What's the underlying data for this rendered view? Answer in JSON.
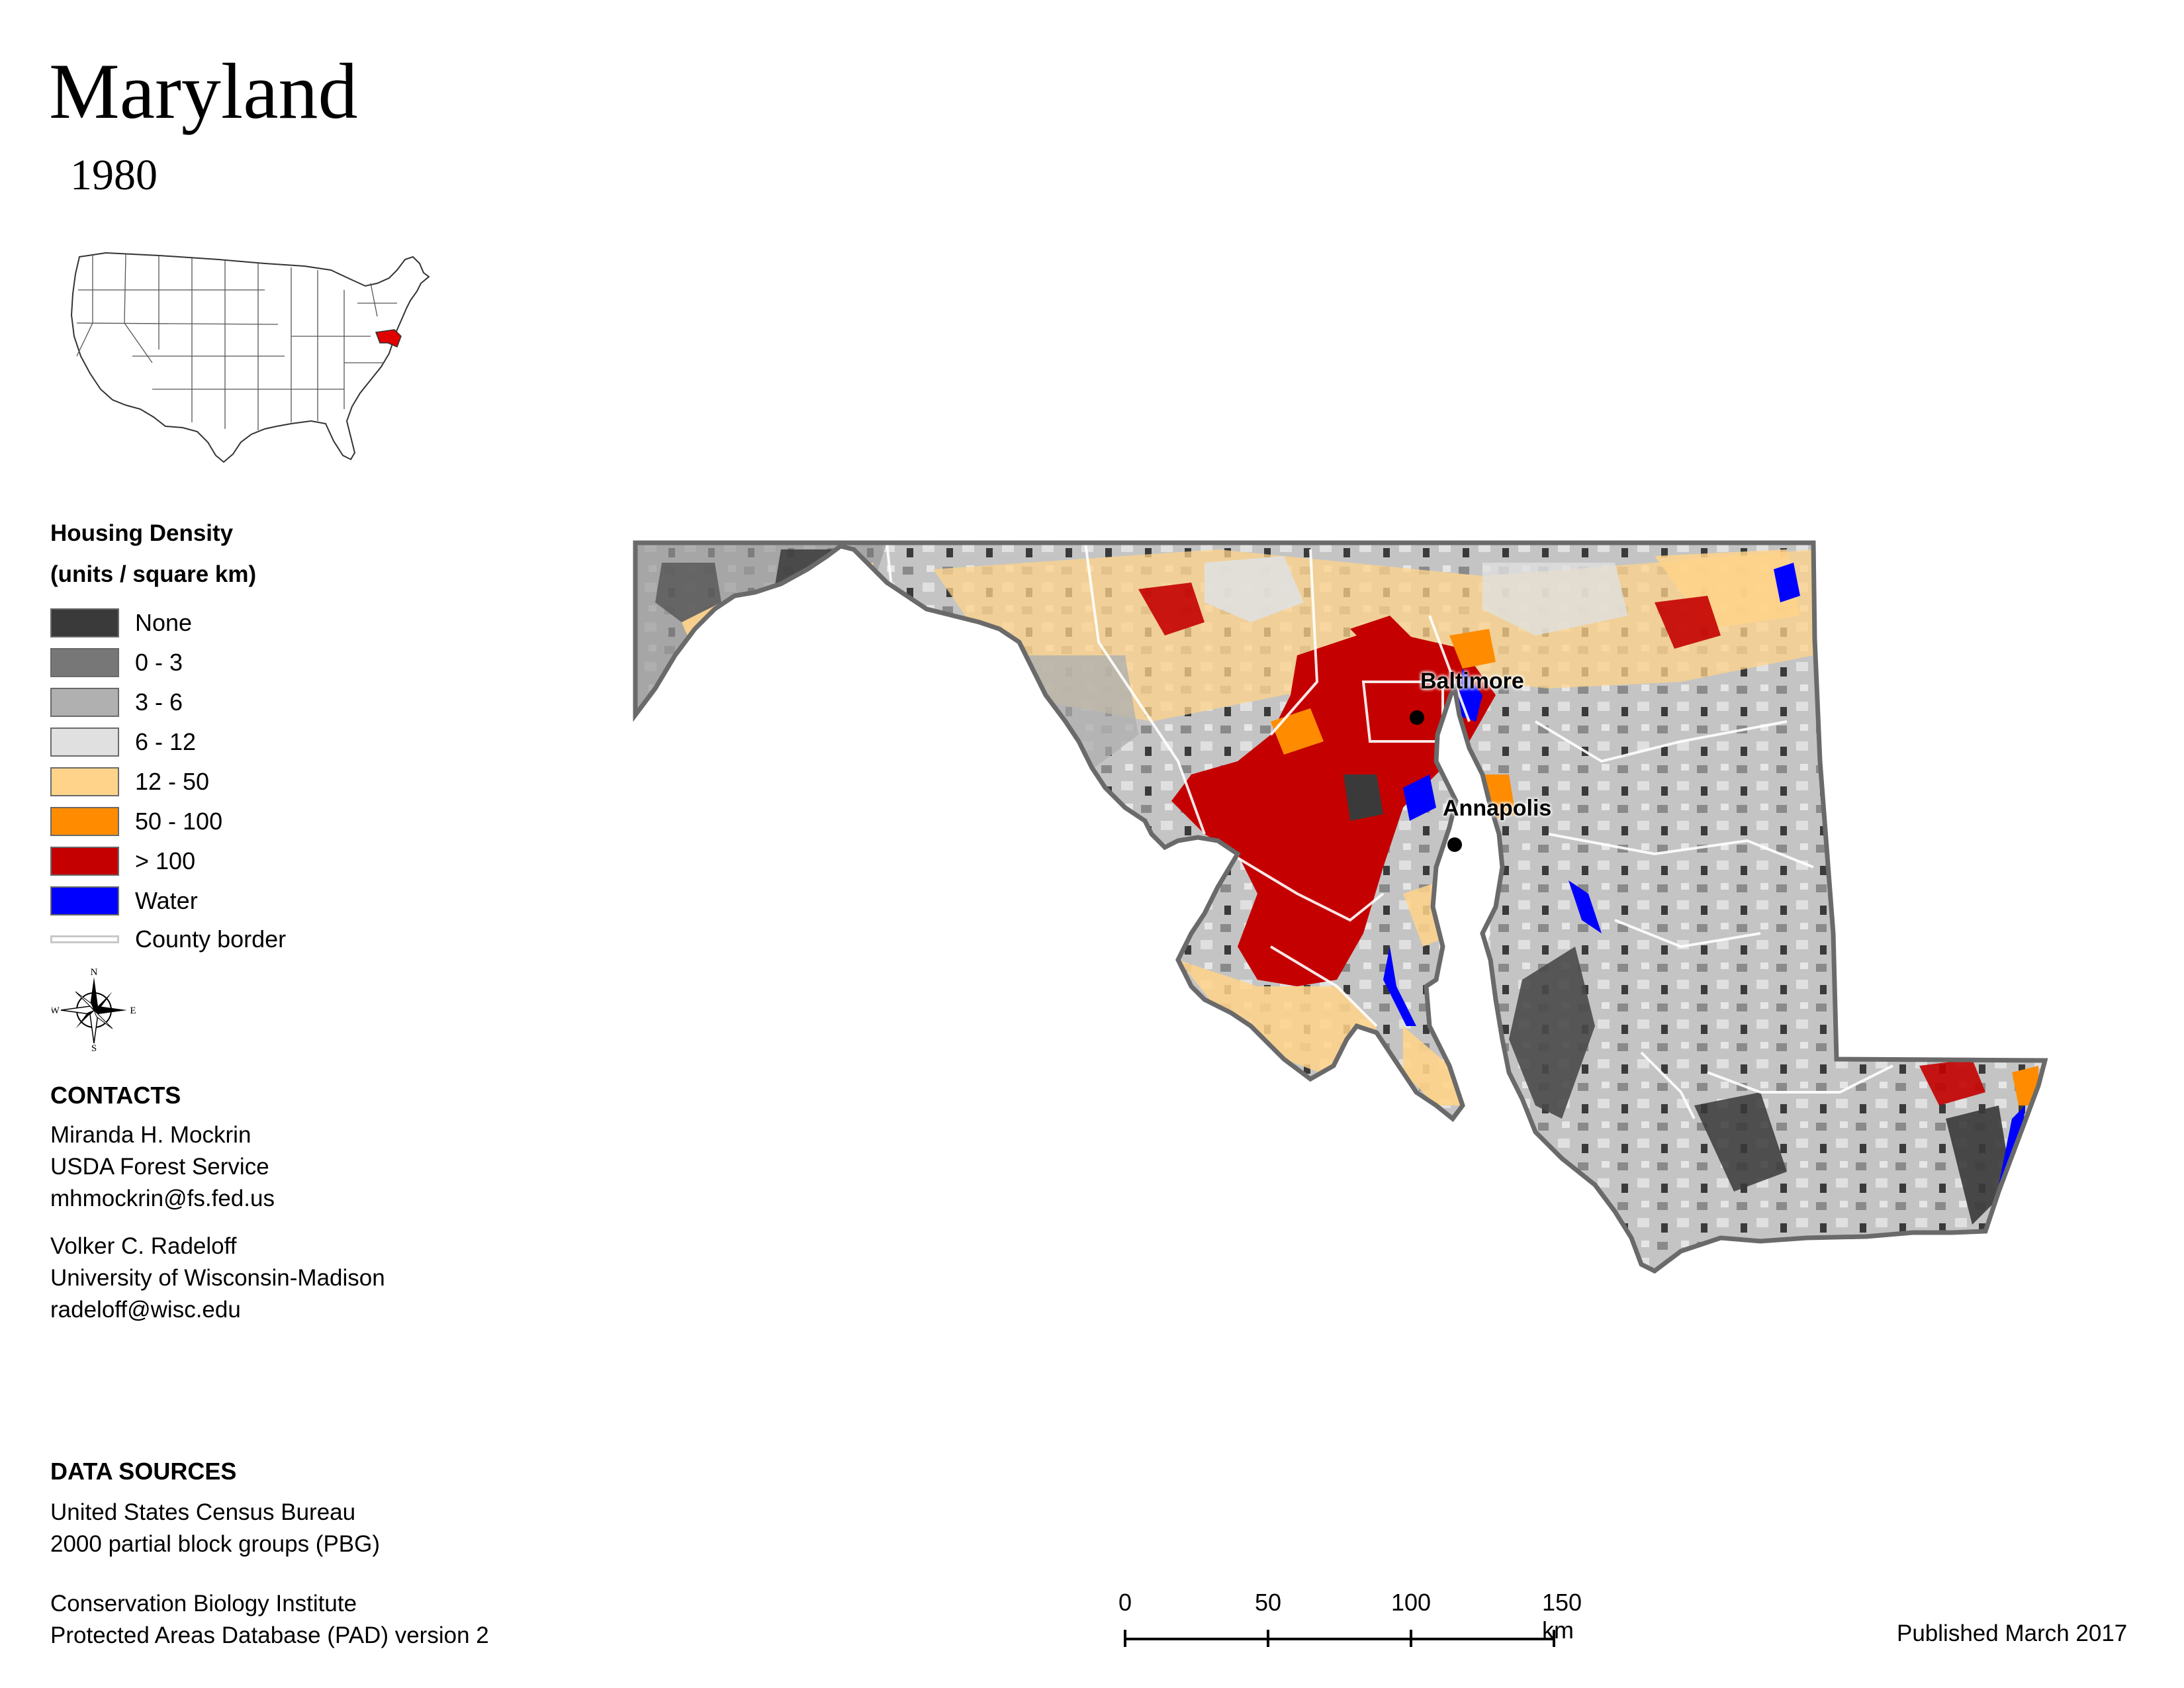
{
  "title": "Maryland",
  "year": "1980",
  "legend": {
    "title_line1": "Housing Density",
    "title_line2": "(units / square km)",
    "items": [
      {
        "label": "None",
        "color": "#3a3a3a"
      },
      {
        "label": "0 - 3",
        "color": "#777777"
      },
      {
        "label": "3 - 6",
        "color": "#b0b0b0"
      },
      {
        "label": "6 - 12",
        "color": "#e0e0e0"
      },
      {
        "label": "12 - 50",
        "color": "#ffd48a"
      },
      {
        "label": "50 - 100",
        "color": "#ff8c00"
      },
      {
        "label": "> 100",
        "color": "#c40000"
      },
      {
        "label": "Water",
        "color": "#0000ff"
      }
    ],
    "border_label": "County border"
  },
  "compass": {
    "n": "N",
    "s": "S",
    "e": "E",
    "w": "W"
  },
  "contacts": {
    "heading": "CONTACTS",
    "person1": [
      "Miranda H. Mockrin",
      "USDA Forest Service",
      "mhmockrin@fs.fed.us"
    ],
    "person2": [
      "Volker C. Radeloff",
      "University of Wisconsin-Madison",
      "radeloff@wisc.edu"
    ]
  },
  "data_sources": {
    "heading": "DATA SOURCES",
    "source1": [
      "United States Census Bureau",
      "2000 partial block groups (PBG)"
    ],
    "source2": [
      "Conservation Biology Institute",
      "Protected Areas Database (PAD) version 2"
    ]
  },
  "cities": [
    {
      "name": "Baltimore"
    },
    {
      "name": "Annapolis"
    }
  ],
  "scale_bar": {
    "ticks": [
      "0",
      "50",
      "100",
      "150 km"
    ]
  },
  "published": "Published March 2017"
}
